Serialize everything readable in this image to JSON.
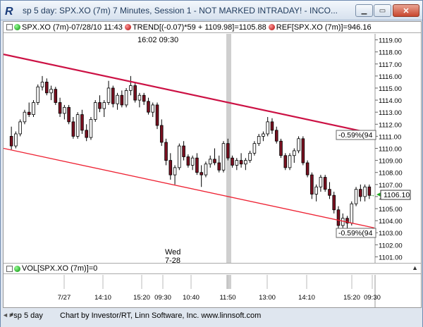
{
  "window": {
    "title": "sp 5 day: SPX.XO (7m) 7 Minutes, Session 1 - NOT MARKED INTRADAY! - INCO...",
    "icon": "investor-rt-r-icon",
    "minimize": "minimize-icon",
    "maximize": "maximize-icon",
    "close": "close-icon"
  },
  "legend": {
    "symbol": "SPX.XO (7m)-07/28/10 11:43",
    "trend": "TREND[(-0.07)*59 + 1109.98]=1105.88",
    "ref": "REF[SPX.XO (7m)]=946.16"
  },
  "annotations": {
    "session_time_top": "16:02  09:30",
    "day_name": "Wed",
    "day_date": "7-28",
    "upper_tag": "-0.59%(94",
    "lower_tag": "-0.59%(94",
    "last_price": "1106.10"
  },
  "volume": {
    "label": "VOL[SPX.XO (7m)]=0"
  },
  "footer": {
    "tab": "*sp 5 day",
    "credit": "Chart by Investor/RT, Linn Software, Inc. www.linnsoft.com"
  },
  "colors": {
    "up_candle": "#ffffff",
    "down_candle": "#7a1020",
    "upper_channel": "#cc1144",
    "lower_channel": "#ee2233",
    "session_divider": "#c8c8c8",
    "last_price_box": "#22aa22"
  },
  "chart_data": {
    "type": "candlestick",
    "ylim": [
      1100.5,
      1119.5
    ],
    "y_ticks": [
      "1101.00",
      "1102.00",
      "1103.00",
      "1104.00",
      "1105.00",
      "1106.00",
      "1107.00",
      "1108.00",
      "1109.00",
      "1110.00",
      "1111.00",
      "1112.00",
      "1113.00",
      "1114.00",
      "1115.00",
      "1116.00",
      "1117.00",
      "1118.00",
      "1119.00"
    ],
    "x_ticks": [
      "7/27",
      "14:10",
      "15:20",
      "09:30",
      "10:40",
      "11:50",
      "13:00",
      "14:10",
      "15:20",
      "09:30"
    ],
    "upper_channel": {
      "start": 1117.8,
      "end": 1111.2
    },
    "lower_channel": {
      "start": 1110.0,
      "end": 1103.4
    },
    "candles": [
      [
        1111.0,
        1111.8,
        1109.9,
        1110.2
      ],
      [
        1110.2,
        1111.4,
        1110.0,
        1111.2
      ],
      [
        1111.2,
        1112.4,
        1111.0,
        1112.2
      ],
      [
        1112.2,
        1113.2,
        1112.0,
        1113.0
      ],
      [
        1113.0,
        1113.8,
        1112.6,
        1112.8
      ],
      [
        1112.8,
        1114.0,
        1112.6,
        1113.8
      ],
      [
        1113.8,
        1115.3,
        1113.6,
        1115.1
      ],
      [
        1115.1,
        1116.0,
        1114.8,
        1115.5
      ],
      [
        1115.5,
        1115.8,
        1114.4,
        1114.6
      ],
      [
        1114.6,
        1115.2,
        1114.0,
        1114.9
      ],
      [
        1114.9,
        1115.1,
        1113.6,
        1113.8
      ],
      [
        1113.8,
        1114.2,
        1112.6,
        1112.9
      ],
      [
        1112.9,
        1113.6,
        1112.4,
        1113.4
      ],
      [
        1113.4,
        1113.6,
        1112.0,
        1112.2
      ],
      [
        1112.2,
        1112.6,
        1110.8,
        1111.0
      ],
      [
        1111.0,
        1113.0,
        1110.8,
        1112.8
      ],
      [
        1112.8,
        1113.2,
        1111.2,
        1111.5
      ],
      [
        1111.5,
        1112.0,
        1110.6,
        1110.9
      ],
      [
        1110.9,
        1112.6,
        1110.7,
        1112.4
      ],
      [
        1112.4,
        1114.0,
        1112.2,
        1113.8
      ],
      [
        1113.8,
        1114.4,
        1113.0,
        1113.3
      ],
      [
        1113.3,
        1114.0,
        1112.6,
        1113.8
      ],
      [
        1113.8,
        1115.6,
        1113.6,
        1115.0
      ],
      [
        1115.0,
        1115.2,
        1113.4,
        1113.7
      ],
      [
        1113.7,
        1114.6,
        1113.2,
        1114.4
      ],
      [
        1114.4,
        1114.8,
        1113.4,
        1113.6
      ],
      [
        1113.6,
        1115.0,
        1113.4,
        1114.8
      ],
      [
        1114.8,
        1116.0,
        1114.4,
        1115.2
      ],
      [
        1115.2,
        1115.4,
        1113.8,
        1114.0
      ],
      [
        1114.0,
        1114.6,
        1113.4,
        1114.4
      ],
      [
        1114.4,
        1114.6,
        1113.6,
        1113.9
      ],
      [
        1113.9,
        1114.2,
        1112.8,
        1113.0
      ],
      [
        1113.0,
        1113.8,
        1112.6,
        1113.6
      ],
      [
        1113.6,
        1113.8,
        1111.6,
        1111.9
      ],
      [
        1111.9,
        1112.4,
        1110.2,
        1110.5
      ],
      [
        1110.5,
        1110.8,
        1108.6,
        1109.0
      ],
      [
        1109.0,
        1109.6,
        1107.4,
        1107.8
      ],
      [
        1107.8,
        1108.6,
        1107.0,
        1108.4
      ],
      [
        1108.4,
        1110.4,
        1108.2,
        1110.2
      ],
      [
        1110.2,
        1110.6,
        1109.0,
        1109.3
      ],
      [
        1109.3,
        1109.5,
        1108.4,
        1108.6
      ],
      [
        1108.6,
        1109.4,
        1108.2,
        1109.2
      ],
      [
        1109.2,
        1109.6,
        1107.8,
        1108.0
      ],
      [
        1108.0,
        1108.6,
        1106.8,
        1107.8
      ],
      [
        1107.8,
        1108.9,
        1107.6,
        1108.7
      ],
      [
        1108.7,
        1109.4,
        1108.4,
        1109.1
      ],
      [
        1109.1,
        1110.0,
        1108.6,
        1108.8
      ],
      [
        1108.8,
        1109.4,
        1108.0,
        1108.2
      ],
      [
        1108.2,
        1110.6,
        1108.0,
        1110.4
      ],
      [
        1110.4,
        1110.8,
        1109.0,
        1109.2
      ],
      [
        1109.2,
        1109.4,
        1108.4,
        1108.6
      ],
      [
        1108.6,
        1109.2,
        1108.2,
        1109.0
      ],
      [
        1109.0,
        1109.6,
        1108.4,
        1108.7
      ],
      [
        1108.7,
        1109.2,
        1108.2,
        1109.0
      ],
      [
        1109.0,
        1109.8,
        1108.8,
        1109.6
      ],
      [
        1109.6,
        1110.6,
        1109.4,
        1110.4
      ],
      [
        1110.4,
        1111.2,
        1110.2,
        1111.0
      ],
      [
        1111.0,
        1111.4,
        1110.6,
        1111.2
      ],
      [
        1111.2,
        1112.6,
        1111.0,
        1112.2
      ],
      [
        1112.2,
        1112.5,
        1111.2,
        1111.5
      ],
      [
        1111.5,
        1111.8,
        1110.4,
        1110.6
      ],
      [
        1110.6,
        1110.8,
        1109.2,
        1109.4
      ],
      [
        1109.4,
        1109.6,
        1108.2,
        1108.4
      ],
      [
        1108.4,
        1109.6,
        1108.2,
        1109.4
      ],
      [
        1109.4,
        1110.0,
        1108.8,
        1109.8
      ],
      [
        1109.8,
        1111.0,
        1109.6,
        1110.8
      ],
      [
        1110.8,
        1111.0,
        1108.6,
        1108.8
      ],
      [
        1108.8,
        1109.0,
        1107.6,
        1107.8
      ],
      [
        1107.8,
        1108.0,
        1105.8,
        1106.2
      ],
      [
        1106.2,
        1107.0,
        1105.6,
        1106.8
      ],
      [
        1106.8,
        1107.8,
        1106.4,
        1107.6
      ],
      [
        1107.6,
        1107.8,
        1106.4,
        1106.6
      ],
      [
        1106.6,
        1107.2,
        1105.8,
        1106.1
      ],
      [
        1106.1,
        1106.4,
        1104.6,
        1104.9
      ],
      [
        1104.9,
        1105.2,
        1103.2,
        1103.6
      ],
      [
        1103.6,
        1104.6,
        1103.4,
        1104.2
      ],
      [
        1104.2,
        1104.4,
        1102.9,
        1103.8
      ],
      [
        1103.8,
        1105.6,
        1103.6,
        1105.4
      ],
      [
        1105.4,
        1106.8,
        1105.2,
        1106.6
      ],
      [
        1106.6,
        1107.0,
        1105.6,
        1106.0
      ],
      [
        1106.0,
        1107.0,
        1105.6,
        1106.8
      ],
      [
        1106.8,
        1107.0,
        1105.8,
        1106.1
      ]
    ]
  }
}
